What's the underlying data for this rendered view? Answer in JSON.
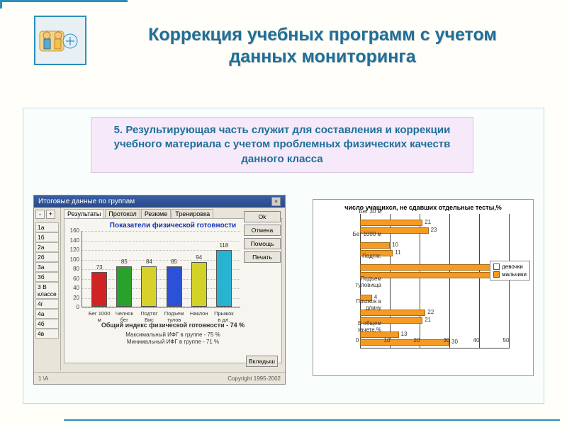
{
  "title": "Коррекция учебных программ с учетом данных мониторинга",
  "callout": "5. Результирующая часть служит для составления и коррекции учебного материала с учетом проблемных физических качеств  данного класса",
  "win": {
    "title": "Итоговые данные по группам",
    "side_items": [
      "1а",
      "1б",
      "2а",
      "2б",
      "3а",
      "3б",
      "3 В классе",
      "4г",
      "4а",
      "4б",
      "4в"
    ],
    "tabs": [
      "Результаты",
      "Протокол",
      "Резюме",
      "Тренировка"
    ],
    "chart_title": "Показатели физической готовности",
    "bars": {
      "categories": [
        "Бег 1000 м",
        "Челнок бег",
        "Подтяг Вис",
        "Подъем тулов",
        "Наклон",
        "Прыжок в дл."
      ],
      "values": [
        73,
        85,
        84,
        85,
        94,
        118
      ],
      "colors": [
        "#d02424",
        "#2aa12a",
        "#d7d22a",
        "#2a51d7",
        "#d2d228",
        "#28b4d0"
      ],
      "ymax": 160,
      "ytick_step": 20
    },
    "foot1": "Общий индекс физической готовности - 74 %",
    "foot2a": "Максимальный ИФГ в группе - 75 %",
    "foot2b": "Минимальный ИФГ в группе - 71 %",
    "btns": [
      "Ok",
      "Отмена",
      "Помощь",
      "Печать"
    ],
    "insert_btn": "Вкладыш",
    "status_l": "1 \\А",
    "status_r": "Copyright 1995-2002"
  },
  "hchart": {
    "title": "число учащихся, не сдавших отдельные тесты,%",
    "xmax": 50,
    "xtick_step": 10,
    "categories": [
      "Бег 30 м",
      "Бег 1000 м",
      "Подтяг.",
      "Подъем туловища",
      "Прыжок в длину",
      "В общем зачете,%"
    ],
    "girls": [
      21,
      10,
      46,
      0,
      22,
      13
    ],
    "boys": [
      23,
      11,
      46,
      4,
      21,
      30
    ],
    "bar_color": "#f59a23",
    "legend": {
      "g": "девочки",
      "b": "мальчики"
    }
  }
}
